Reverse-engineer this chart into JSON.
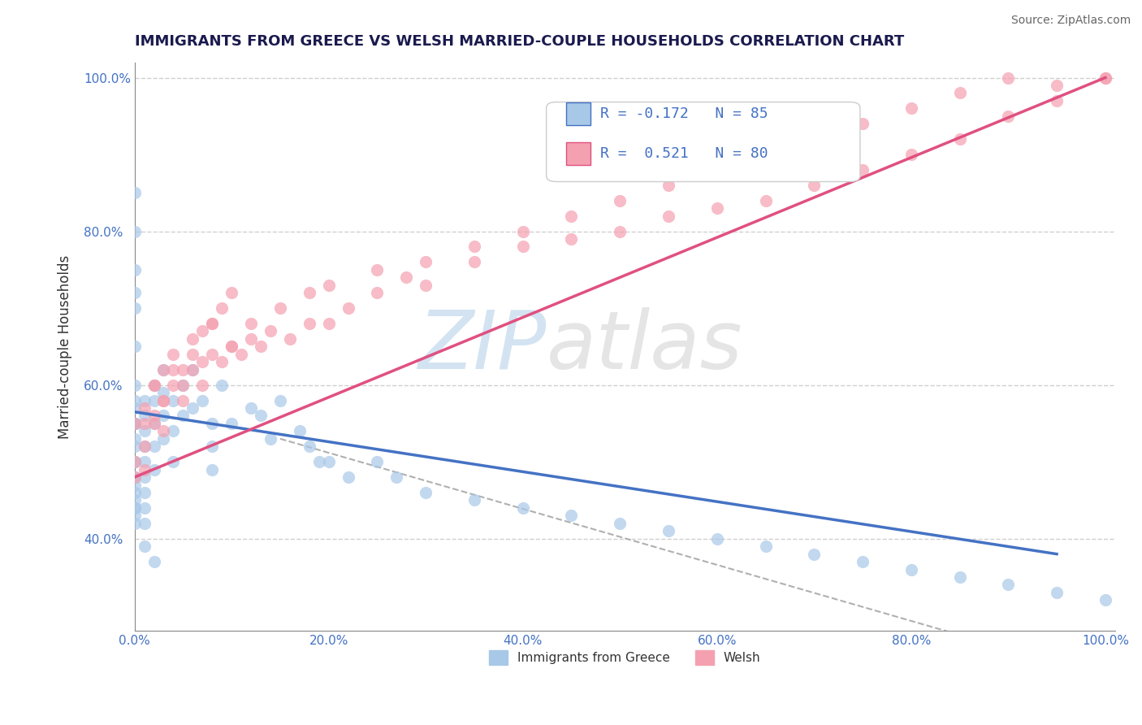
{
  "title": "IMMIGRANTS FROM GREECE VS WELSH MARRIED-COUPLE HOUSEHOLDS CORRELATION CHART",
  "source": "Source: ZipAtlas.com",
  "xlabel": "",
  "ylabel": "Married-couple Households",
  "legend_label_1": "Immigrants from Greece",
  "legend_label_2": "Welsh",
  "r1": -0.172,
  "n1": 85,
  "r2": 0.521,
  "n2": 80,
  "color1": "#a8c8e8",
  "color2": "#f4a0b0",
  "line_color1": "#4472c4",
  "line_color2": "#e05080",
  "background_color": "#ffffff",
  "grid_color": "#d0d0d0",
  "blue_points_x": [
    0.0,
    0.0,
    0.0,
    0.0,
    0.0,
    0.0,
    0.0,
    0.0,
    0.0,
    0.0,
    0.0,
    0.0,
    0.0,
    0.0,
    0.0,
    0.0,
    0.0,
    0.0,
    0.0,
    0.0,
    0.0,
    0.0,
    0.0,
    0.01,
    0.01,
    0.01,
    0.01,
    0.01,
    0.01,
    0.01,
    0.01,
    0.01,
    0.02,
    0.02,
    0.02,
    0.02,
    0.02,
    0.03,
    0.03,
    0.03,
    0.03,
    0.04,
    0.04,
    0.04,
    0.05,
    0.05,
    0.06,
    0.06,
    0.07,
    0.08,
    0.08,
    0.08,
    0.09,
    0.1,
    0.12,
    0.13,
    0.14,
    0.15,
    0.17,
    0.18,
    0.19,
    0.2,
    0.22,
    0.25,
    0.27,
    0.3,
    0.35,
    0.4,
    0.45,
    0.5,
    0.55,
    0.6,
    0.65,
    0.7,
    0.75,
    0.8,
    0.85,
    0.9,
    0.95,
    1.0,
    0.0,
    0.0,
    0.0,
    0.01,
    0.02
  ],
  "blue_points_y": [
    0.55,
    0.57,
    0.58,
    0.55,
    0.53,
    0.52,
    0.5,
    0.48,
    0.47,
    0.45,
    0.44,
    0.43,
    0.55,
    0.6,
    0.65,
    0.7,
    0.72,
    0.55,
    0.5,
    0.48,
    0.46,
    0.44,
    0.42,
    0.58,
    0.56,
    0.54,
    0.52,
    0.5,
    0.48,
    0.46,
    0.44,
    0.42,
    0.6,
    0.58,
    0.55,
    0.52,
    0.49,
    0.62,
    0.59,
    0.56,
    0.53,
    0.58,
    0.54,
    0.5,
    0.6,
    0.56,
    0.62,
    0.57,
    0.58,
    0.55,
    0.52,
    0.49,
    0.6,
    0.55,
    0.57,
    0.56,
    0.53,
    0.58,
    0.54,
    0.52,
    0.5,
    0.5,
    0.48,
    0.5,
    0.48,
    0.46,
    0.45,
    0.44,
    0.43,
    0.42,
    0.41,
    0.4,
    0.39,
    0.38,
    0.37,
    0.36,
    0.35,
    0.34,
    0.33,
    0.32,
    0.75,
    0.8,
    0.85,
    0.39,
    0.37
  ],
  "pink_points_x": [
    0.0,
    0.0,
    0.0,
    0.01,
    0.01,
    0.01,
    0.02,
    0.02,
    0.03,
    0.03,
    0.04,
    0.05,
    0.06,
    0.07,
    0.08,
    0.09,
    0.1,
    0.11,
    0.12,
    0.13,
    0.14,
    0.16,
    0.18,
    0.2,
    0.22,
    0.25,
    0.28,
    0.3,
    0.35,
    0.4,
    0.45,
    0.5,
    0.55,
    0.6,
    0.65,
    0.7,
    0.75,
    0.8,
    0.85,
    0.9,
    0.95,
    1.0,
    0.01,
    0.02,
    0.03,
    0.04,
    0.05,
    0.06,
    0.07,
    0.08,
    0.1,
    0.12,
    0.15,
    0.18,
    0.2,
    0.25,
    0.3,
    0.35,
    0.4,
    0.45,
    0.5,
    0.55,
    0.6,
    0.65,
    0.7,
    0.75,
    0.8,
    0.85,
    0.9,
    0.95,
    1.0,
    0.02,
    0.03,
    0.04,
    0.05,
    0.06,
    0.07,
    0.08,
    0.09,
    0.1
  ],
  "pink_points_y": [
    0.5,
    0.48,
    0.55,
    0.55,
    0.52,
    0.49,
    0.6,
    0.56,
    0.58,
    0.54,
    0.62,
    0.58,
    0.62,
    0.6,
    0.64,
    0.63,
    0.65,
    0.64,
    0.66,
    0.65,
    0.67,
    0.66,
    0.68,
    0.68,
    0.7,
    0.72,
    0.74,
    0.73,
    0.76,
    0.78,
    0.79,
    0.8,
    0.82,
    0.83,
    0.84,
    0.86,
    0.88,
    0.9,
    0.92,
    0.95,
    0.97,
    1.0,
    0.57,
    0.6,
    0.62,
    0.64,
    0.6,
    0.66,
    0.63,
    0.68,
    0.65,
    0.68,
    0.7,
    0.72,
    0.73,
    0.75,
    0.76,
    0.78,
    0.8,
    0.82,
    0.84,
    0.86,
    0.88,
    0.9,
    0.92,
    0.94,
    0.96,
    0.98,
    1.0,
    0.99,
    1.0,
    0.55,
    0.58,
    0.6,
    0.62,
    0.64,
    0.67,
    0.68,
    0.7,
    0.72
  ]
}
